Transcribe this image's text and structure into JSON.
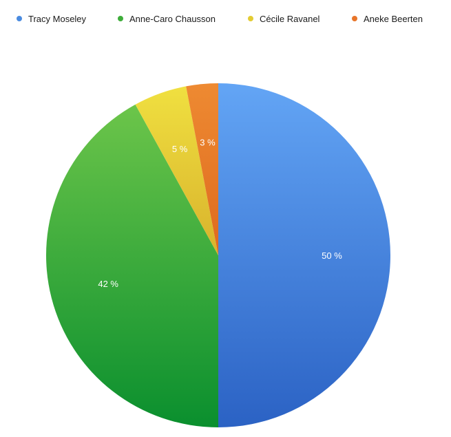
{
  "chart_data": {
    "type": "pie",
    "legend_position": "top",
    "series": [
      {
        "name": "Tracy Moseley",
        "value": 50,
        "label": "50 %",
        "color": "#4a8be0"
      },
      {
        "name": "Anne-Caro Chausson",
        "value": 42,
        "label": "42 %",
        "color": "#3ead3a"
      },
      {
        "name": "Cécile Ravanel",
        "value": 5,
        "label": "5 %",
        "color": "#e3cc33"
      },
      {
        "name": "Aneke Beerten",
        "value": 3,
        "label": "3 %",
        "color": "#e8752a"
      }
    ]
  }
}
